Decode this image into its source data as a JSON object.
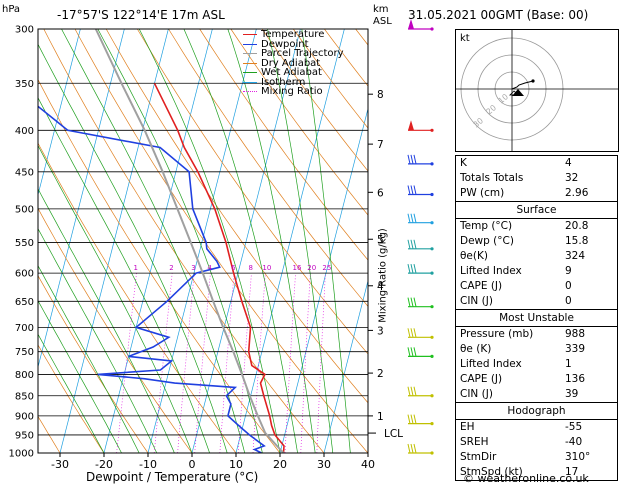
{
  "header": {
    "location": "-17°57'S  122°14'E  17m  ASL",
    "datetime": "31.05.2021  00GMT  (Base: 00)",
    "hpa_unit": "hPa",
    "km_unit": "km",
    "asl_unit": "ASL"
  },
  "chart_data": {
    "type": "line",
    "title": "-17°57'S 122°14'E 17m ASL",
    "xlabel": "Dewpoint / Temperature (°C)",
    "ylabel_right": "Mixing Ratio (g/kg)",
    "xlim": [
      -35,
      40
    ],
    "ylim_hpa": [
      1000,
      300
    ],
    "x_ticks": [
      -30,
      -20,
      -10,
      0,
      10,
      20,
      30,
      40
    ],
    "x_tick_labels": [
      "-30",
      "-20",
      "-10",
      "0",
      "10",
      "20",
      "30",
      "40"
    ],
    "pressure_levels": [
      300,
      350,
      400,
      450,
      500,
      550,
      600,
      650,
      700,
      750,
      800,
      850,
      900,
      950,
      1000
    ],
    "pressure_labels": [
      "300",
      "350",
      "400",
      "450",
      "500",
      "550",
      "600",
      "650",
      "700",
      "750",
      "800",
      "850",
      "900",
      "950",
      "1000"
    ],
    "km_ticks": [
      {
        "km": 1,
        "p": 900,
        "label": "1"
      },
      {
        "km": 2,
        "p": 797,
        "label": "2"
      },
      {
        "km": 3,
        "p": 706,
        "label": "3"
      },
      {
        "km": 4,
        "p": 622,
        "label": "4"
      },
      {
        "km": 5,
        "p": 545,
        "label": "5"
      },
      {
        "km": 6,
        "p": 477,
        "label": "6"
      },
      {
        "km": 7,
        "p": 416,
        "label": "7"
      },
      {
        "km": 8,
        "p": 361,
        "label": "8"
      }
    ],
    "lcl": {
      "label": "LCL",
      "p": 945
    },
    "mixing_ratios": [
      1,
      2,
      3,
      4,
      6,
      8,
      10,
      16,
      20,
      25
    ],
    "mixing_ratio_labels": [
      "1",
      "2",
      "3",
      "4",
      "6",
      "8",
      "10",
      "16",
      "20",
      "25"
    ],
    "legend": [
      {
        "name": "Temperature",
        "color": "#e02020"
      },
      {
        "name": "Dewpoint",
        "color": "#2040e0"
      },
      {
        "name": "Parcel Trajectory",
        "color": "#a0a0a0"
      },
      {
        "name": "Dry Adiabat",
        "color": "#e08020"
      },
      {
        "name": "Wet Adiabat",
        "color": "#20a020"
      },
      {
        "name": "Isotherm",
        "color": "#20a0e0"
      },
      {
        "name": "Mixing Ratio",
        "color": "#e020e0"
      }
    ],
    "series": [
      {
        "name": "Temperature",
        "color": "#e02020",
        "points": [
          [
            1000,
            20.8
          ],
          [
            980,
            20.5
          ],
          [
            950,
            17.8
          ],
          [
            925,
            16.5
          ],
          [
            900,
            15.5
          ],
          [
            850,
            13.0
          ],
          [
            820,
            11.5
          ],
          [
            800,
            12.0
          ],
          [
            780,
            8.5
          ],
          [
            750,
            7.0
          ],
          [
            700,
            6.0
          ],
          [
            650,
            2.5
          ],
          [
            600,
            -1.0
          ],
          [
            550,
            -4.5
          ],
          [
            500,
            -9.0
          ],
          [
            450,
            -15.0
          ],
          [
            420,
            -19.5
          ],
          [
            400,
            -22.0
          ],
          [
            350,
            -30.0
          ]
        ]
      },
      {
        "name": "Dewpoint",
        "color": "#2040e0",
        "points": [
          [
            1000,
            15.8
          ],
          [
            990,
            14.0
          ],
          [
            980,
            16.0
          ],
          [
            950,
            12.0
          ],
          [
            925,
            9.0
          ],
          [
            900,
            6.0
          ],
          [
            870,
            6.0
          ],
          [
            850,
            4.5
          ],
          [
            830,
            6.0
          ],
          [
            820,
            -8.0
          ],
          [
            810,
            -15.0
          ],
          [
            800,
            -26.0
          ],
          [
            790,
            -12.0
          ],
          [
            770,
            -10.0
          ],
          [
            760,
            -20.0
          ],
          [
            740,
            -15.0
          ],
          [
            720,
            -12.0
          ],
          [
            700,
            -20.0
          ],
          [
            650,
            -14.5
          ],
          [
            600,
            -9.5
          ],
          [
            590,
            -4.5
          ],
          [
            580,
            -5.5
          ],
          [
            560,
            -8.5
          ],
          [
            550,
            -9.0
          ],
          [
            500,
            -14.0
          ],
          [
            450,
            -17.0
          ],
          [
            420,
            -25.0
          ],
          [
            400,
            -47.0
          ],
          [
            390,
            -50.0
          ],
          [
            350,
            -63.0
          ],
          [
            300,
            -62.0
          ]
        ]
      },
      {
        "name": "Parcel Trajectory",
        "color": "#a0a0a0",
        "points": [
          [
            1000,
            20.8
          ],
          [
            945,
            15.5
          ],
          [
            900,
            12.8
          ],
          [
            850,
            9.8
          ],
          [
            800,
            6.8
          ],
          [
            750,
            3.5
          ],
          [
            700,
            -0.2
          ],
          [
            650,
            -4.0
          ],
          [
            600,
            -8.0
          ],
          [
            550,
            -12.5
          ],
          [
            500,
            -17.5
          ],
          [
            450,
            -23.0
          ],
          [
            400,
            -29.5
          ],
          [
            350,
            -37.5
          ],
          [
            300,
            -46.5
          ]
        ]
      }
    ]
  },
  "hodograph": {
    "label": "kt",
    "ring_labels": [
      "10",
      "20",
      "30"
    ]
  },
  "indices": {
    "rows": [
      {
        "label": "K",
        "value": "4"
      },
      {
        "label": "Totals Totals",
        "value": "32"
      },
      {
        "label": "PW (cm)",
        "value": "2.96"
      }
    ]
  },
  "surface": {
    "title": "Surface",
    "rows": [
      {
        "label": "Temp (°C)",
        "value": "20.8"
      },
      {
        "label": "Dewp (°C)",
        "value": "15.8"
      },
      {
        "label": "θe(K)",
        "value": "324"
      },
      {
        "label": "Lifted Index",
        "value": "9"
      },
      {
        "label": "CAPE (J)",
        "value": "0"
      },
      {
        "label": "CIN (J)",
        "value": "0"
      }
    ]
  },
  "most_unstable": {
    "title": "Most Unstable",
    "rows": [
      {
        "label": "Pressure (mb)",
        "value": "988"
      },
      {
        "label": "θe (K)",
        "value": "339"
      },
      {
        "label": "Lifted Index",
        "value": "1"
      },
      {
        "label": "CAPE (J)",
        "value": "136"
      },
      {
        "label": "CIN (J)",
        "value": "39"
      }
    ]
  },
  "hodograph_params": {
    "title": "Hodograph",
    "rows": [
      {
        "label": "EH",
        "value": "-55"
      },
      {
        "label": "SREH",
        "value": "-40"
      },
      {
        "label": "StmDir",
        "value": "310°"
      },
      {
        "label": "StmSpd (kt)",
        "value": "17"
      }
    ]
  },
  "footer": {
    "copyright": "© weatheronline.co.uk"
  }
}
